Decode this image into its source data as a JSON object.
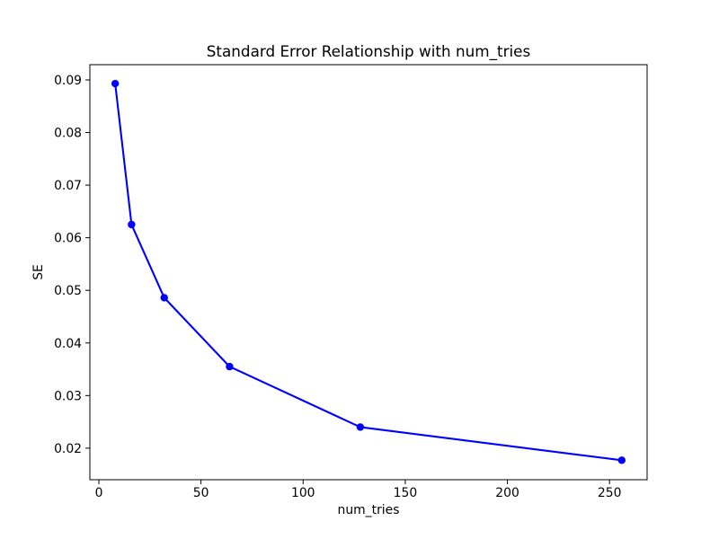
{
  "figure": {
    "background": "#ffffff",
    "text_color": "#000000",
    "axis_color": "#000000"
  },
  "chart_data": {
    "type": "line",
    "title": "Standard Error Relationship with num_tries",
    "xlabel": "num_tries",
    "ylabel": "SE",
    "grid": false,
    "legend": null,
    "xlim": [
      -4.4,
      268.4
    ],
    "ylim": [
      0.014,
      0.0929
    ],
    "xticks": {
      "values": [
        0,
        50,
        100,
        150,
        200,
        250
      ],
      "labels": [
        "0",
        "50",
        "100",
        "150",
        "200",
        "250"
      ]
    },
    "yticks": {
      "values": [
        0.02,
        0.03,
        0.04,
        0.05,
        0.06,
        0.07,
        0.08,
        0.09
      ],
      "labels": [
        "0.02",
        "0.03",
        "0.04",
        "0.05",
        "0.06",
        "0.07",
        "0.08",
        "0.09"
      ]
    },
    "series": [
      {
        "name": "SE",
        "color": "#0000ff",
        "marker": "circle",
        "x": [
          8,
          16,
          32,
          64,
          128,
          256
        ],
        "y": [
          0.0893,
          0.0625,
          0.0486,
          0.0355,
          0.024,
          0.0177
        ]
      }
    ]
  }
}
